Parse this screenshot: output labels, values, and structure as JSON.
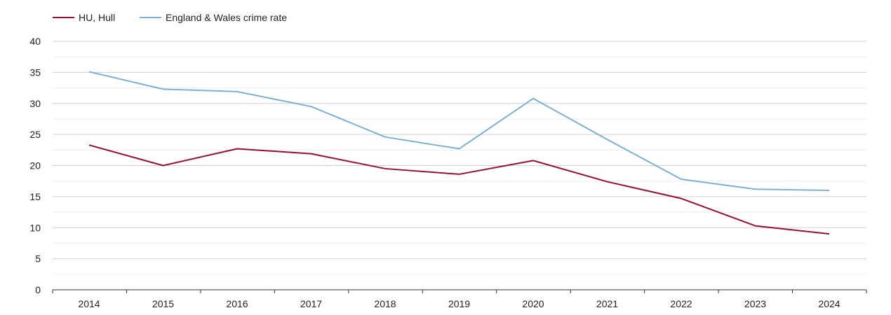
{
  "chart_data": {
    "type": "line",
    "title": "",
    "xlabel": "",
    "ylabel": "",
    "categories": [
      "2014",
      "2015",
      "2016",
      "2017",
      "2018",
      "2019",
      "2020",
      "2021",
      "2022",
      "2023",
      "2024"
    ],
    "ylim": [
      0,
      40
    ],
    "yticks": [
      0,
      5,
      10,
      15,
      20,
      25,
      30,
      35,
      40
    ],
    "grid": true,
    "legend_position": "top-left",
    "series": [
      {
        "name": "HU, Hull",
        "color": "#9b0d37",
        "values": [
          23.3,
          20.0,
          22.7,
          21.9,
          19.5,
          18.6,
          20.8,
          17.4,
          14.7,
          10.3,
          9.0
        ]
      },
      {
        "name": "England & Wales crime rate",
        "color": "#7bafd4",
        "values": [
          35.1,
          32.3,
          31.9,
          29.5,
          24.6,
          22.7,
          30.8,
          24.2,
          17.8,
          16.2,
          16.0
        ]
      }
    ]
  }
}
